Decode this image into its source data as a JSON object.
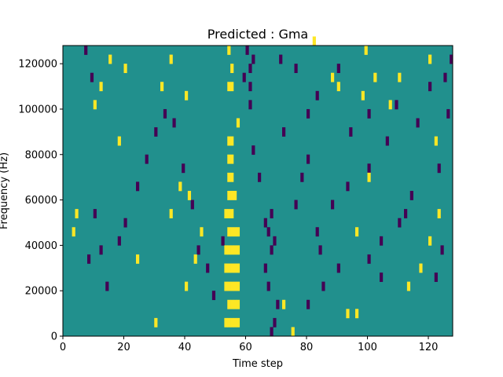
{
  "chart_data": {
    "type": "heatmap",
    "title": "Predicted : Gma",
    "xlabel": "Time step",
    "ylabel": "Frequency (Hz)",
    "xlim": [
      0,
      128
    ],
    "ylim": [
      0,
      128000
    ],
    "x_ticks": [
      0,
      20,
      40,
      60,
      80,
      100,
      120
    ],
    "y_ticks": [
      0,
      20000,
      40000,
      60000,
      80000,
      100000,
      120000
    ],
    "grid": false,
    "legend": "none",
    "colormap": {
      "background": "#21908d",
      "low": "#440154",
      "high": "#fde725"
    },
    "dominant_value": "mid",
    "high_cells": [
      [
        53,
        4000
      ],
      [
        54,
        4000
      ],
      [
        55,
        4000
      ],
      [
        56,
        4000
      ],
      [
        57,
        4000
      ],
      [
        54,
        12000
      ],
      [
        55,
        12000
      ],
      [
        56,
        12000
      ],
      [
        57,
        12000
      ],
      [
        53,
        20000
      ],
      [
        54,
        20000
      ],
      [
        55,
        20000
      ],
      [
        56,
        20000
      ],
      [
        57,
        20000
      ],
      [
        53,
        28000
      ],
      [
        54,
        28000
      ],
      [
        55,
        28000
      ],
      [
        56,
        28000
      ],
      [
        57,
        28000
      ],
      [
        53,
        36000
      ],
      [
        54,
        36000
      ],
      [
        55,
        36000
      ],
      [
        56,
        36000
      ],
      [
        57,
        36000
      ],
      [
        54,
        44000
      ],
      [
        55,
        44000
      ],
      [
        56,
        44000
      ],
      [
        57,
        44000
      ],
      [
        53,
        52000
      ],
      [
        54,
        52000
      ],
      [
        55,
        52000
      ],
      [
        54,
        60000
      ],
      [
        55,
        60000
      ],
      [
        56,
        60000
      ],
      [
        54,
        68000
      ],
      [
        55,
        68000
      ],
      [
        54,
        76000
      ],
      [
        55,
        76000
      ],
      [
        54,
        84000
      ],
      [
        55,
        84000
      ],
      [
        57,
        92000
      ],
      [
        54,
        108000
      ],
      [
        55,
        108000
      ],
      [
        55,
        116000
      ],
      [
        54,
        124000
      ],
      [
        40,
        20000
      ],
      [
        43,
        32000
      ],
      [
        45,
        44000
      ],
      [
        35,
        52000
      ],
      [
        38,
        64000
      ],
      [
        41,
        60000
      ],
      [
        96,
        44000
      ],
      [
        100,
        68000
      ],
      [
        113,
        20000
      ],
      [
        117,
        28000
      ],
      [
        120,
        40000
      ],
      [
        123,
        52000
      ],
      [
        122,
        84000
      ],
      [
        107,
        100000
      ],
      [
        110,
        112000
      ],
      [
        120,
        120000
      ],
      [
        18,
        84000
      ],
      [
        30,
        4000
      ],
      [
        24,
        32000
      ],
      [
        20,
        116000
      ],
      [
        15,
        120000
      ],
      [
        35,
        120000
      ],
      [
        3,
        44000
      ],
      [
        4,
        52000
      ],
      [
        75,
        0
      ],
      [
        72,
        12000
      ],
      [
        93,
        8000
      ],
      [
        96,
        8000
      ],
      [
        98,
        104000
      ],
      [
        102,
        112000
      ],
      [
        99,
        124000
      ],
      [
        82,
        128000
      ],
      [
        12,
        108000
      ],
      [
        10,
        100000
      ],
      [
        32,
        108000
      ],
      [
        40,
        104000
      ],
      [
        88,
        112000
      ],
      [
        90,
        108000
      ]
    ],
    "low_cells": [
      [
        68,
        0
      ],
      [
        69,
        4000
      ],
      [
        70,
        12000
      ],
      [
        67,
        20000
      ],
      [
        66,
        28000
      ],
      [
        68,
        36000
      ],
      [
        67,
        44000
      ],
      [
        68,
        52000
      ],
      [
        69,
        40000
      ],
      [
        66,
        48000
      ],
      [
        64,
        68000
      ],
      [
        62,
        80000
      ],
      [
        61,
        100000
      ],
      [
        61,
        108000
      ],
      [
        61,
        116000
      ],
      [
        60,
        124000
      ],
      [
        72,
        88000
      ],
      [
        80,
        96000
      ],
      [
        83,
        104000
      ],
      [
        76,
        116000
      ],
      [
        80,
        12000
      ],
      [
        85,
        20000
      ],
      [
        90,
        28000
      ],
      [
        84,
        36000
      ],
      [
        83,
        44000
      ],
      [
        88,
        56000
      ],
      [
        93,
        64000
      ],
      [
        100,
        72000
      ],
      [
        110,
        48000
      ],
      [
        112,
        52000
      ],
      [
        114,
        60000
      ],
      [
        100,
        32000
      ],
      [
        104,
        24000
      ],
      [
        104,
        40000
      ],
      [
        7,
        124000
      ],
      [
        9,
        112000
      ],
      [
        10,
        52000
      ],
      [
        12,
        36000
      ],
      [
        8,
        32000
      ],
      [
        14,
        20000
      ],
      [
        18,
        40000
      ],
      [
        20,
        48000
      ],
      [
        24,
        64000
      ],
      [
        27,
        76000
      ],
      [
        30,
        88000
      ],
      [
        33,
        96000
      ],
      [
        36,
        92000
      ],
      [
        39,
        72000
      ],
      [
        42,
        56000
      ],
      [
        44,
        36000
      ],
      [
        47,
        28000
      ],
      [
        49,
        16000
      ],
      [
        52,
        40000
      ],
      [
        59,
        112000
      ],
      [
        62,
        120000
      ],
      [
        71,
        120000
      ],
      [
        76,
        56000
      ],
      [
        78,
        68000
      ],
      [
        80,
        76000
      ],
      [
        90,
        116000
      ],
      [
        94,
        88000
      ],
      [
        100,
        96000
      ],
      [
        106,
        84000
      ],
      [
        109,
        100000
      ],
      [
        116,
        92000
      ],
      [
        120,
        108000
      ],
      [
        125,
        112000
      ],
      [
        127,
        120000
      ],
      [
        126,
        96000
      ],
      [
        123,
        72000
      ],
      [
        124,
        36000
      ],
      [
        122,
        24000
      ]
    ]
  }
}
